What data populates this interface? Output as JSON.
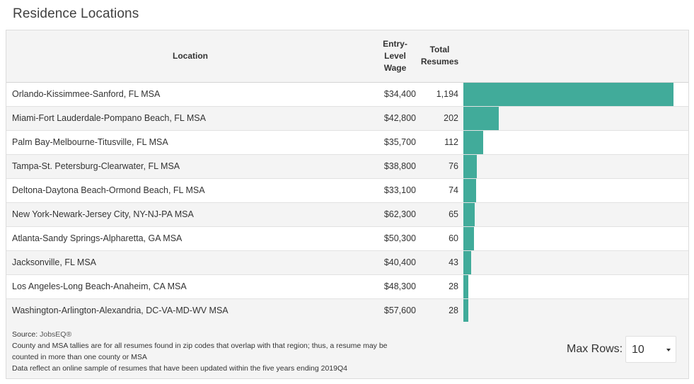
{
  "page": {
    "title": "Residence Locations"
  },
  "table": {
    "headers": {
      "location": "Location",
      "wage_line1": "Entry-",
      "wage_line2": "Level",
      "wage_line3": "Wage",
      "total_line1": "Total",
      "total_line2": "Resumes"
    },
    "max_total": 1194,
    "rows": [
      {
        "location": "Orlando-Kissimmee-Sanford, FL MSA",
        "wage": "$34,400",
        "total": "1,194",
        "total_value": 1194
      },
      {
        "location": "Miami-Fort Lauderdale-Pompano Beach, FL MSA",
        "wage": "$42,800",
        "total": "202",
        "total_value": 202
      },
      {
        "location": "Palm Bay-Melbourne-Titusville, FL MSA",
        "wage": "$35,700",
        "total": "112",
        "total_value": 112
      },
      {
        "location": "Tampa-St. Petersburg-Clearwater, FL MSA",
        "wage": "$38,800",
        "total": "76",
        "total_value": 76
      },
      {
        "location": "Deltona-Daytona Beach-Ormond Beach, FL MSA",
        "wage": "$33,100",
        "total": "74",
        "total_value": 74
      },
      {
        "location": "New York-Newark-Jersey City, NY-NJ-PA MSA",
        "wage": "$62,300",
        "total": "65",
        "total_value": 65
      },
      {
        "location": "Atlanta-Sandy Springs-Alpharetta, GA MSA",
        "wage": "$50,300",
        "total": "60",
        "total_value": 60
      },
      {
        "location": "Jacksonville, FL MSA",
        "wage": "$40,400",
        "total": "43",
        "total_value": 43
      },
      {
        "location": "Los Angeles-Long Beach-Anaheim, CA MSA",
        "wage": "$48,300",
        "total": "28",
        "total_value": 28
      },
      {
        "location": "Washington-Arlington-Alexandria, DC-VA-MD-WV MSA",
        "wage": "$57,600",
        "total": "28",
        "total_value": 28
      }
    ]
  },
  "footer": {
    "source_label": "Source: ",
    "source_link": "JobsEQ®",
    "note1": "County and MSA tallies are for all resumes found in zip codes that overlap with that region; thus, a resume may be counted in more than one county or MSA",
    "note2": "Data reflect an online sample of resumes that have been updated within the five years ending 2019Q4",
    "max_rows_label": "Max Rows:",
    "max_rows_value": "10"
  },
  "colors": {
    "bar": "#41ab9a",
    "stripe": "#f4f4f4"
  }
}
